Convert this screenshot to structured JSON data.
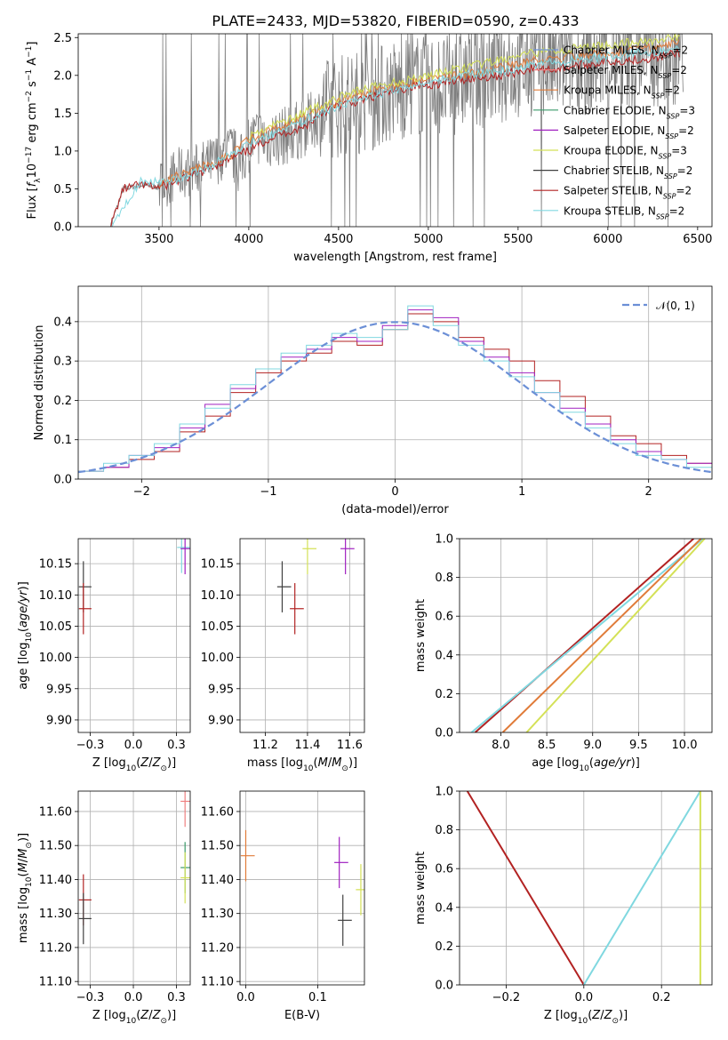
{
  "figure_title": "PLATE=2433, MJD=53820, FIBERID=0590, z=0.433",
  "legend_models": [
    {
      "name": "Chabrier MILES, N",
      "sub": "SSP",
      "suffix": "=2",
      "color": "#6b8fd6"
    },
    {
      "name": "Salpeter MILES, N",
      "sub": "SSP",
      "suffix": "=2",
      "color": "#f08080"
    },
    {
      "name": "Kroupa MILES, N",
      "sub": "SSP",
      "suffix": "=2",
      "color": "#e07b39"
    },
    {
      "name": "Chabrier ELODIE, N",
      "sub": "SSP",
      "suffix": "=3",
      "color": "#3a9a6a"
    },
    {
      "name": "Salpeter ELODIE, N",
      "sub": "SSP",
      "suffix": "=2",
      "color": "#a020c0"
    },
    {
      "name": "Kroupa ELODIE, N",
      "sub": "SSP",
      "suffix": "=3",
      "color": "#d4e157"
    },
    {
      "name": "Chabrier STELIB, N",
      "sub": "SSP",
      "suffix": "=2",
      "color": "#404040"
    },
    {
      "name": "Salpeter STELIB, N",
      "sub": "SSP",
      "suffix": "=2",
      "color": "#b22222"
    },
    {
      "name": "Kroupa STELIB, N",
      "sub": "SSP",
      "suffix": "=2",
      "color": "#80d8e0"
    }
  ],
  "colors": {
    "data": "#7f7f7f",
    "normal_curve": "#6b8fd6",
    "grid": "#b0b0b0"
  },
  "chart_data": [
    {
      "id": "spectrum",
      "type": "line",
      "xlabel": "wavelength [Angstrom, rest frame]",
      "ylabel_parts": [
        "Flux [",
        "f",
        "λ",
        "10",
        "−17",
        " erg cm",
        "−2",
        " s",
        "−1",
        " A",
        "−1",
        "]"
      ],
      "xlim": [
        3050,
        6580
      ],
      "ylim": [
        0,
        2.55
      ],
      "xticks": [
        3500,
        4000,
        4500,
        5000,
        5500,
        6000,
        6500
      ],
      "yticks": [
        0.0,
        0.5,
        1.0,
        1.5,
        2.0,
        2.5
      ],
      "grid": false,
      "legend_position": "upper-right",
      "data_series": {
        "name": "data",
        "x": [
          3230,
          3300,
          3400,
          3500,
          3600,
          3700,
          3800,
          3850,
          3900,
          3950,
          4000,
          4050,
          4100,
          4200,
          4300,
          4400,
          4500,
          4600,
          4700,
          4800,
          4900,
          5000,
          5100,
          5200,
          5300,
          5400,
          5500,
          5600,
          5700,
          5800,
          5900,
          6000,
          6100,
          6200,
          6300,
          6400
        ],
        "y": [
          0.0,
          0.5,
          0.55,
          0.52,
          0.7,
          0.75,
          0.85,
          0.95,
          1.0,
          0.8,
          1.1,
          1.2,
          1.15,
          1.2,
          1.3,
          1.5,
          1.6,
          1.65,
          1.7,
          1.8,
          1.85,
          1.9,
          1.85,
          1.95,
          2.0,
          2.05,
          2.1,
          2.15,
          2.1,
          2.2,
          2.15,
          2.25,
          2.2,
          2.3,
          2.25,
          2.3
        ]
      },
      "model_series": [
        {
          "name": "Salpeter STELIB",
          "x": [
            3230,
            3300,
            3400,
            3500,
            3600,
            3700,
            3800,
            3900,
            4000,
            4100,
            4200,
            4300,
            4400,
            4500,
            4600,
            4700,
            4800,
            4900,
            5000,
            5100,
            5200,
            5300,
            5400,
            5500,
            5600,
            5700,
            5800,
            5900,
            6000,
            6100,
            6200,
            6300,
            6400
          ],
          "y": [
            0.0,
            0.5,
            0.55,
            0.52,
            0.6,
            0.68,
            0.8,
            0.9,
            1.0,
            1.15,
            1.25,
            1.3,
            1.5,
            1.6,
            1.65,
            1.72,
            1.78,
            1.85,
            1.88,
            1.9,
            1.95,
            1.98,
            2.0,
            2.05,
            2.1,
            2.08,
            2.12,
            2.15,
            2.18,
            2.2,
            2.22,
            2.25,
            2.3
          ]
        },
        {
          "name": "Kroupa MILES",
          "x": [
            3500,
            3700,
            3900,
            4000,
            4200,
            4400,
            4600,
            4800,
            5000,
            5200,
            5400,
            5600,
            5800,
            6000,
            6200,
            6400
          ],
          "y": [
            0.58,
            0.75,
            0.95,
            1.15,
            1.35,
            1.55,
            1.75,
            1.85,
            1.95,
            2.0,
            2.1,
            2.2,
            2.25,
            2.3,
            2.35,
            2.45
          ]
        },
        {
          "name": "Kroupa ELODIE",
          "x": [
            4000,
            4200,
            4400,
            4600,
            4800,
            5000,
            5200,
            5400,
            5600,
            5800,
            6000,
            6200,
            6400
          ],
          "y": [
            1.2,
            1.4,
            1.6,
            1.8,
            1.9,
            2.0,
            2.1,
            2.2,
            2.3,
            2.35,
            2.4,
            2.45,
            2.5
          ]
        },
        {
          "name": "Kroupa STELIB",
          "x": [
            3230,
            3400,
            3600,
            3800,
            4000,
            4200,
            4400,
            4600,
            4800,
            5000,
            5200,
            5400,
            5600,
            5800,
            6000,
            6200,
            6400
          ],
          "y": [
            0.0,
            0.6,
            0.62,
            0.82,
            1.1,
            1.3,
            1.5,
            1.68,
            1.8,
            1.9,
            2.0,
            2.05,
            2.15,
            2.2,
            2.25,
            2.3,
            2.35
          ]
        }
      ]
    },
    {
      "id": "residuals",
      "type": "step",
      "xlabel": "(data-model)/error",
      "ylabel": "Normed distribution",
      "xlim": [
        -2.5,
        2.5
      ],
      "ylim": [
        0,
        0.49
      ],
      "xticks": [
        -2,
        -1,
        0,
        1,
        2
      ],
      "yticks": [
        0.0,
        0.1,
        0.2,
        0.3,
        0.4
      ],
      "grid": true,
      "legend_position": "upper-right",
      "legend_entry": "𝒩(0, 1)",
      "bin_edges": [
        -2.5,
        -2.3,
        -2.1,
        -1.9,
        -1.7,
        -1.5,
        -1.3,
        -1.1,
        -0.9,
        -0.7,
        -0.5,
        -0.3,
        -0.1,
        0.1,
        0.3,
        0.5,
        0.7,
        0.9,
        1.1,
        1.3,
        1.5,
        1.7,
        1.9,
        2.1,
        2.3,
        2.5
      ],
      "histograms": [
        {
          "name": "Salpeter STELIB",
          "values": [
            0.02,
            0.03,
            0.05,
            0.07,
            0.12,
            0.16,
            0.22,
            0.27,
            0.3,
            0.32,
            0.35,
            0.34,
            0.38,
            0.42,
            0.4,
            0.36,
            0.33,
            0.3,
            0.25,
            0.21,
            0.16,
            0.11,
            0.09,
            0.06,
            0.04
          ]
        },
        {
          "name": "Salpeter ELODIE",
          "values": [
            0.02,
            0.03,
            0.06,
            0.08,
            0.13,
            0.19,
            0.23,
            0.28,
            0.31,
            0.33,
            0.36,
            0.35,
            0.39,
            0.43,
            0.41,
            0.35,
            0.31,
            0.27,
            0.22,
            0.18,
            0.14,
            0.1,
            0.07,
            0.05,
            0.04
          ]
        },
        {
          "name": "Kroupa STELIB",
          "values": [
            0.02,
            0.04,
            0.06,
            0.09,
            0.14,
            0.18,
            0.24,
            0.28,
            0.32,
            0.34,
            0.37,
            0.36,
            0.38,
            0.44,
            0.39,
            0.34,
            0.3,
            0.26,
            0.22,
            0.17,
            0.13,
            0.09,
            0.06,
            0.05,
            0.03
          ]
        }
      ],
      "normal_curve": {
        "name": "𝒩(0, 1)",
        "mean": 0,
        "sigma": 1
      }
    },
    {
      "id": "age-vs-Z",
      "type": "scatter",
      "xlabel_parts": [
        "Z [log",
        "10",
        "(",
        "Z",
        "/",
        "Z",
        "⊙",
        ")]"
      ],
      "ylabel_parts": [
        "age  [log",
        "10",
        "(",
        "age/yr",
        ")]"
      ],
      "xlim": [
        -0.32,
        0.33
      ],
      "ylim": [
        9.88,
        10.19
      ],
      "xticks": [
        -0.25,
        0.0,
        0.25
      ],
      "yticks": [
        9.9,
        9.95,
        10.0,
        10.05,
        10.1,
        10.15
      ],
      "grid": true,
      "points": [
        {
          "model": "Chabrier STELIB",
          "x": -0.29,
          "y": 10.113
        },
        {
          "model": "Salpeter STELIB",
          "x": -0.29,
          "y": 10.078
        },
        {
          "model": "Kroupa STELIB",
          "x": 0.28,
          "y": 10.176
        },
        {
          "model": "Salpeter ELODIE",
          "x": 0.3,
          "y": 10.174
        }
      ]
    },
    {
      "id": "age-vs-mass",
      "type": "scatter",
      "xlabel_parts": [
        "mass [log",
        "10",
        "(",
        "M",
        "/",
        "M",
        "⊙",
        ")]"
      ],
      "ylim": [
        9.88,
        10.19
      ],
      "xlim": [
        11.08,
        11.67
      ],
      "xticks": [
        11.2,
        11.4,
        11.6
      ],
      "yticks": [
        9.9,
        9.95,
        10.0,
        10.05,
        10.1,
        10.15
      ],
      "grid": true,
      "points": [
        {
          "model": "Chabrier STELIB",
          "x": 11.28,
          "y": 10.113
        },
        {
          "model": "Salpeter STELIB",
          "x": 11.34,
          "y": 10.078
        },
        {
          "model": "Kroupa ELODIE",
          "x": 11.4,
          "y": 10.174
        },
        {
          "model": "Salpeter ELODIE",
          "x": 11.58,
          "y": 10.174
        }
      ]
    },
    {
      "id": "mass-weight-vs-age",
      "type": "line",
      "xlabel_parts": [
        "age  [log",
        "10",
        "(",
        "age/yr",
        ")]"
      ],
      "ylabel": "mass weight",
      "xlim": [
        7.55,
        10.3
      ],
      "ylim": [
        0,
        1
      ],
      "xticks": [
        8.0,
        8.5,
        9.0,
        9.5,
        10.0
      ],
      "yticks": [
        0.0,
        0.2,
        0.4,
        0.6,
        0.8,
        1.0
      ],
      "grid": true,
      "series": [
        {
          "name": "Salpeter STELIB",
          "x": [
            7.72,
            10.1
          ],
          "y": [
            0.0,
            1.0
          ]
        },
        {
          "name": "Kroupa STELIB",
          "x": [
            7.68,
            10.2
          ],
          "y": [
            0.0,
            1.0
          ]
        },
        {
          "name": "Kroupa MILES",
          "x": [
            8.02,
            10.18
          ],
          "y": [
            0.0,
            1.0
          ]
        },
        {
          "name": "Kroupa ELODIE",
          "x": [
            8.28,
            10.22
          ],
          "y": [
            0.0,
            1.0
          ]
        }
      ]
    },
    {
      "id": "mass-vs-Z",
      "type": "scatter",
      "xlabel_parts": [
        "Z [log",
        "10",
        "(",
        "Z",
        "/",
        "Z",
        "⊙",
        ")]"
      ],
      "ylabel_parts": [
        "mass [log",
        "10",
        "(",
        "M",
        "/",
        "M",
        "⊙",
        ")]"
      ],
      "xlim": [
        -0.32,
        0.33
      ],
      "ylim": [
        11.09,
        11.66
      ],
      "xticks": [
        -0.25,
        0.0,
        0.25
      ],
      "yticks": [
        11.1,
        11.2,
        11.3,
        11.4,
        11.5,
        11.6
      ],
      "grid": true,
      "points": [
        {
          "model": "Salpeter STELIB",
          "x": -0.29,
          "y": 11.34
        },
        {
          "model": "Chabrier STELIB",
          "x": -0.29,
          "y": 11.285
        },
        {
          "model": "Salpeter MILES",
          "x": 0.3,
          "y": 11.63
        },
        {
          "model": "Chabrier ELODIE",
          "x": 0.3,
          "y": 11.435
        },
        {
          "model": "Kroupa ELODIE",
          "x": 0.3,
          "y": 11.405
        }
      ]
    },
    {
      "id": "mass-vs-EBV",
      "type": "scatter",
      "xlabel": "E(B-V)",
      "xlim": [
        -0.008,
        0.165
      ],
      "ylim": [
        11.09,
        11.66
      ],
      "xticks": [
        0.0,
        0.1
      ],
      "yticks": [
        11.1,
        11.2,
        11.3,
        11.4,
        11.5,
        11.6
      ],
      "grid": true,
      "points": [
        {
          "model": "Kroupa MILES",
          "x": 0.0,
          "y": 11.47
        },
        {
          "model": "Salpeter ELODIE",
          "x": 0.13,
          "y": 11.45
        },
        {
          "model": "Chabrier STELIB",
          "x": 0.135,
          "y": 11.28
        },
        {
          "model": "Kroupa ELODIE",
          "x": 0.16,
          "y": 11.37
        }
      ]
    },
    {
      "id": "mass-weight-vs-Z",
      "type": "line",
      "xlabel_parts": [
        "Z [log",
        "10",
        "(",
        "Z",
        "/",
        "Z",
        "⊙",
        ")]"
      ],
      "ylabel": "mass weight",
      "xlim": [
        -0.32,
        0.33
      ],
      "ylim": [
        0,
        1
      ],
      "xticks": [
        -0.2,
        0.0,
        0.2
      ],
      "yticks": [
        0.0,
        0.2,
        0.4,
        0.6,
        0.8,
        1.0
      ],
      "grid": true,
      "series": [
        {
          "name": "Salpeter STELIB",
          "x": [
            -0.3,
            0.0
          ],
          "y": [
            1.0,
            0.0
          ]
        },
        {
          "name": "Kroupa STELIB",
          "x": [
            0.0,
            0.3
          ],
          "y": [
            0.0,
            1.0
          ]
        },
        {
          "name": "Kroupa ELODIE",
          "x": [
            0.3,
            0.3
          ],
          "y": [
            0.0,
            1.0
          ]
        }
      ]
    }
  ]
}
